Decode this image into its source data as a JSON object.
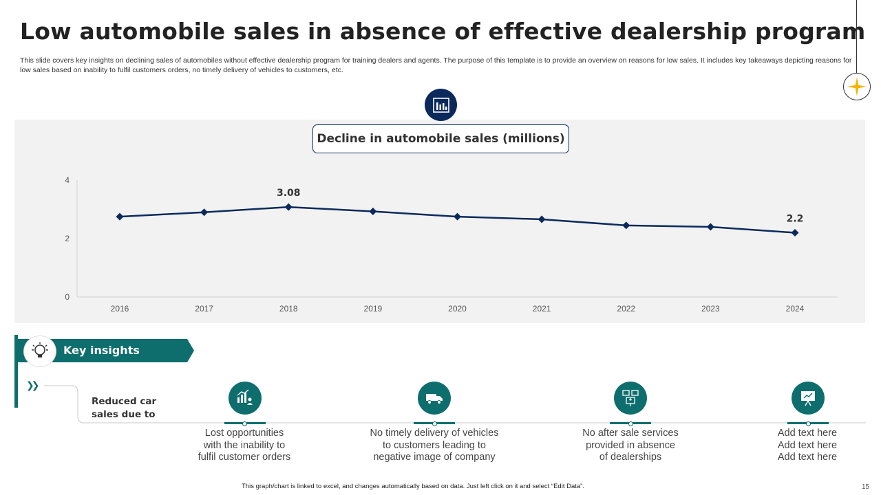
{
  "slide": {
    "title": "Low automobile sales in absence of effective dealership program",
    "subtitle": "This slide covers key insights on declining sales of automobiles without effective dealership program for training dealers and agents. The purpose of this template is to provide an overview on reasons for low sales. It includes key takeaways depicting reasons for low sales based on inability to fulfil customers orders, no timely delivery of vehicles to customers, etc.",
    "footer_note": "This graph/chart is linked to excel, and changes automatically based on data. Just left click on it and select “Edit Data”.",
    "page_number": "15"
  },
  "chart_data": {
    "type": "line",
    "title": "Decline in automobile sales (millions)",
    "categories": [
      "2016",
      "2017",
      "2018",
      "2019",
      "2020",
      "2021",
      "2022",
      "2023",
      "2024"
    ],
    "series": [
      {
        "values": [
          2.75,
          2.9,
          3.08,
          2.93,
          2.75,
          2.66,
          2.45,
          2.4,
          2.2
        ],
        "color": "#0b2a5b"
      }
    ],
    "data_labels": [
      {
        "index": 2,
        "text": "3.08"
      },
      {
        "index": 8,
        "text": "2.2"
      }
    ],
    "yticks": [
      "0",
      "2",
      "4"
    ],
    "ylim": [
      0,
      4
    ],
    "xlabel": "",
    "ylabel": "",
    "grid": false,
    "legend": "none"
  },
  "insights": {
    "header": "Key insights",
    "lead": "Reduced car sales due to",
    "items": [
      {
        "icon": "growth-chart-people-icon",
        "text": "Lost opportunities\nwith the inability  to\nfulfil customer orders"
      },
      {
        "icon": "delivery-truck-icon",
        "text": "No timely delivery of vehicles\nto customers leading to\nnegative image of company"
      },
      {
        "icon": "service-presentation-icon",
        "text": "No after sale services\nprovided in absence\nof dealerships"
      },
      {
        "icon": "presentation-board-icon",
        "text": "Add text here\nAdd text here\nAdd text here"
      }
    ]
  },
  "colors": {
    "navy": "#0b2a5b",
    "teal": "#0e6e6e",
    "panel": "#f2f2f2",
    "star": "#f4b400"
  }
}
